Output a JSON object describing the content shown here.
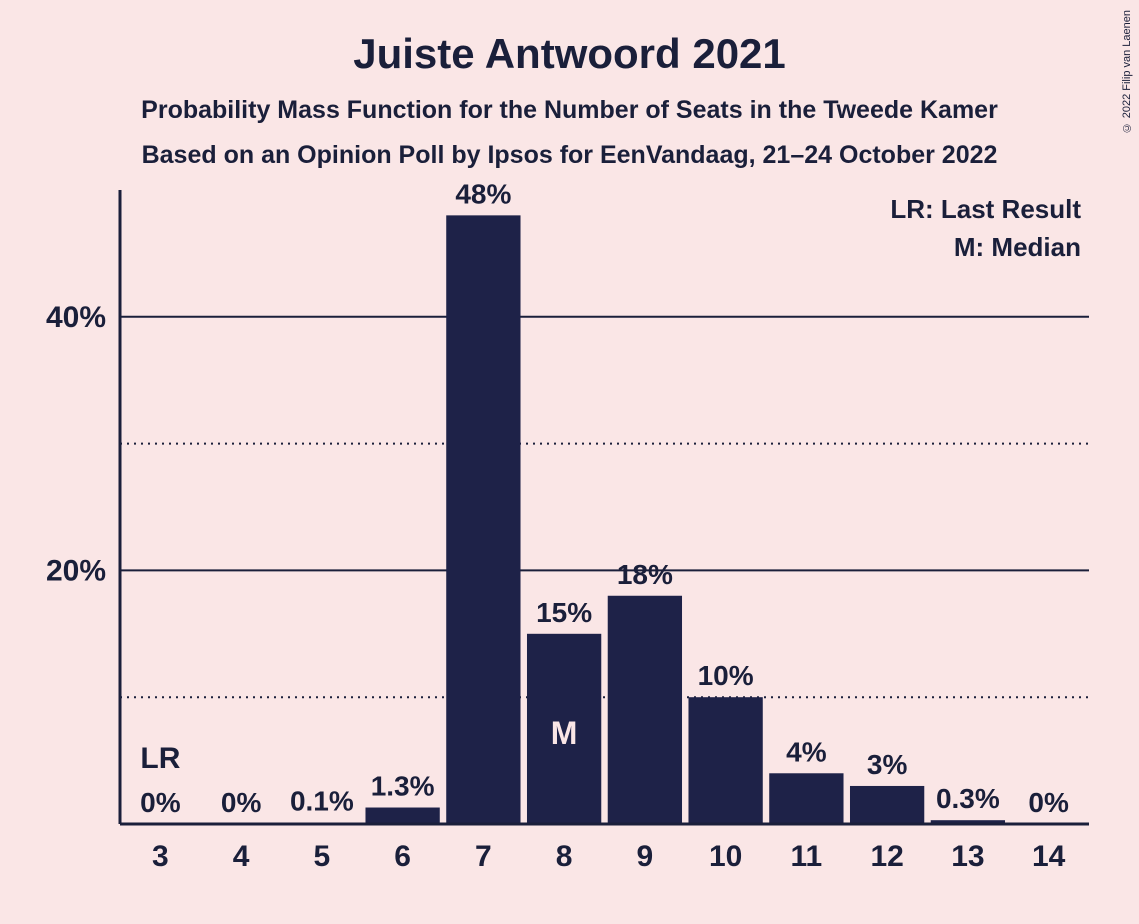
{
  "title": "Juiste Antwoord 2021",
  "subtitle": "Probability Mass Function for the Number of Seats in the Tweede Kamer",
  "subtitle2": "Based on an Opinion Poll by Ipsos for EenVandaag, 21–24 October 2022",
  "copyright": "© 2022 Filip van Laenen",
  "legend": {
    "lr": "LR: Last Result",
    "m": "M: Median"
  },
  "chart": {
    "type": "bar",
    "categories": [
      3,
      4,
      5,
      6,
      7,
      8,
      9,
      10,
      11,
      12,
      13,
      14
    ],
    "values": [
      0,
      0,
      0.1,
      1.3,
      48,
      15,
      18,
      10,
      4,
      3,
      0.3,
      0
    ],
    "value_labels": [
      "0%",
      "0%",
      "0.1%",
      "1.3%",
      "48%",
      "15%",
      "18%",
      "10%",
      "4%",
      "3%",
      "0.3%",
      "0%"
    ],
    "lr_index": 0,
    "median_index": 5,
    "lr_mark": "LR",
    "median_mark": "M",
    "bar_color": "#1e2248",
    "y_max": 50,
    "y_ticks_major": [
      20,
      40
    ],
    "y_ticks_minor": [
      10,
      30
    ],
    "y_tick_labels": [
      "20%",
      "40%"
    ],
    "background_color": "#fae6e6",
    "axis_color": "#1a1f3a",
    "grid_major_color": "#1a1f3a",
    "grid_minor_style": "dotted",
    "text_color": "#1a1f3a",
    "median_text_color": "#fae6e6",
    "title_fontsize": 42,
    "subtitle_fontsize": 25,
    "value_label_fontsize": 28,
    "x_label_fontsize": 30,
    "y_label_fontsize": 30,
    "legend_fontsize": 26,
    "bar_width_ratio": 0.92
  }
}
